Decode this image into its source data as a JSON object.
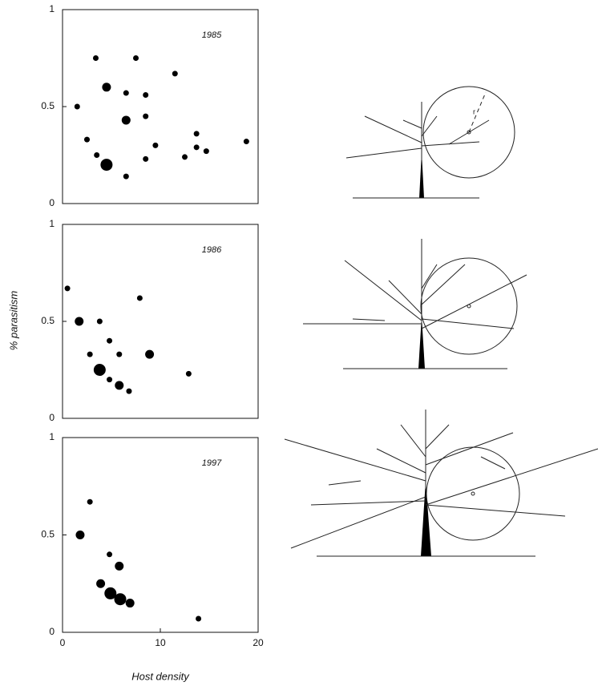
{
  "ylabel": "% parasitism",
  "xlabel": "Host density",
  "chart_data": [
    {
      "type": "scatter",
      "label": "1985",
      "xlim": [
        0,
        20
      ],
      "ylim": [
        0,
        1
      ],
      "yticks": [
        0,
        0.5,
        1
      ],
      "color": "#000",
      "x": [
        1.5,
        2.5,
        3.4,
        3.5,
        4.5,
        4.5,
        6.5,
        6.5,
        6.5,
        7.5,
        8.5,
        8.5,
        8.5,
        9.5,
        11.5,
        12.5,
        13.7,
        13.7,
        14.7,
        18.8
      ],
      "values": [
        0.5,
        0.33,
        0.75,
        0.25,
        0.6,
        0.2,
        0.57,
        0.43,
        0.14,
        0.75,
        0.56,
        0.45,
        0.23,
        0.3,
        0.67,
        0.24,
        0.36,
        0.29,
        0.27,
        0.32
      ],
      "sizes": [
        1,
        1,
        1,
        1,
        2,
        3,
        1,
        2,
        1,
        1,
        1,
        1,
        1,
        1,
        1,
        1,
        1,
        1,
        1,
        1
      ]
    },
    {
      "type": "scatter",
      "label": "1986",
      "xlim": [
        0,
        20
      ],
      "ylim": [
        0,
        1
      ],
      "yticks": [
        0,
        0.5,
        1
      ],
      "color": "#000",
      "x": [
        0.5,
        1.7,
        2.8,
        3.8,
        3.8,
        4.8,
        4.8,
        5.8,
        5.8,
        6.8,
        7.9,
        8.9,
        12.9
      ],
      "values": [
        0.67,
        0.5,
        0.33,
        0.5,
        0.25,
        0.4,
        0.2,
        0.33,
        0.17,
        0.14,
        0.62,
        0.33,
        0.23
      ],
      "sizes": [
        1,
        2,
        1,
        1,
        3,
        1,
        1,
        1,
        2,
        1,
        1,
        2,
        1
      ]
    },
    {
      "type": "scatter",
      "label": "1997",
      "xlim": [
        0,
        20
      ],
      "ylim": [
        0,
        1
      ],
      "yticks": [
        0,
        0.5,
        1
      ],
      "xticks": [
        0,
        10,
        20
      ],
      "color": "#000",
      "x": [
        2.8,
        1.8,
        4.8,
        3.9,
        5.8,
        4.9,
        5.9,
        6.9,
        13.9
      ],
      "values": [
        0.67,
        0.5,
        0.4,
        0.25,
        0.34,
        0.2,
        0.17,
        0.15,
        0.07
      ],
      "sizes": [
        1,
        2,
        1,
        2,
        2,
        3,
        3,
        2,
        1
      ]
    }
  ]
}
